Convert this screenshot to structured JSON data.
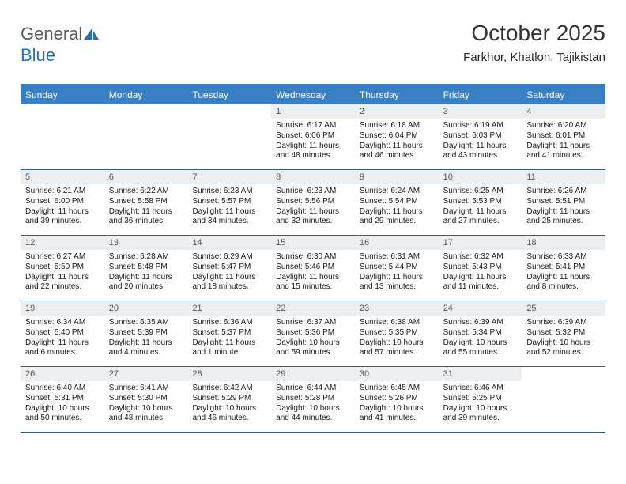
{
  "logo": {
    "part1": "General",
    "part2": "Blue"
  },
  "header": {
    "month": "October 2025",
    "location": "Farkhor, Khatlon, Tajikistan"
  },
  "colors": {
    "header_bg": "#3a7fc4",
    "header_border": "#3a7fc4",
    "row_border": "#36628f",
    "daynum_bg": "#eceff1",
    "logo_gray": "#5a5a5a",
    "logo_blue": "#2a6fb5"
  },
  "day_names": [
    "Sunday",
    "Monday",
    "Tuesday",
    "Wednesday",
    "Thursday",
    "Friday",
    "Saturday"
  ],
  "weeks": [
    [
      null,
      null,
      null,
      {
        "n": "1",
        "sr": "Sunrise: 6:17 AM",
        "ss": "Sunset: 6:06 PM",
        "dl": "Daylight: 11 hours and 48 minutes."
      },
      {
        "n": "2",
        "sr": "Sunrise: 6:18 AM",
        "ss": "Sunset: 6:04 PM",
        "dl": "Daylight: 11 hours and 46 minutes."
      },
      {
        "n": "3",
        "sr": "Sunrise: 6:19 AM",
        "ss": "Sunset: 6:03 PM",
        "dl": "Daylight: 11 hours and 43 minutes."
      },
      {
        "n": "4",
        "sr": "Sunrise: 6:20 AM",
        "ss": "Sunset: 6:01 PM",
        "dl": "Daylight: 11 hours and 41 minutes."
      }
    ],
    [
      {
        "n": "5",
        "sr": "Sunrise: 6:21 AM",
        "ss": "Sunset: 6:00 PM",
        "dl": "Daylight: 11 hours and 39 minutes."
      },
      {
        "n": "6",
        "sr": "Sunrise: 6:22 AM",
        "ss": "Sunset: 5:58 PM",
        "dl": "Daylight: 11 hours and 36 minutes."
      },
      {
        "n": "7",
        "sr": "Sunrise: 6:23 AM",
        "ss": "Sunset: 5:57 PM",
        "dl": "Daylight: 11 hours and 34 minutes."
      },
      {
        "n": "8",
        "sr": "Sunrise: 6:23 AM",
        "ss": "Sunset: 5:56 PM",
        "dl": "Daylight: 11 hours and 32 minutes."
      },
      {
        "n": "9",
        "sr": "Sunrise: 6:24 AM",
        "ss": "Sunset: 5:54 PM",
        "dl": "Daylight: 11 hours and 29 minutes."
      },
      {
        "n": "10",
        "sr": "Sunrise: 6:25 AM",
        "ss": "Sunset: 5:53 PM",
        "dl": "Daylight: 11 hours and 27 minutes."
      },
      {
        "n": "11",
        "sr": "Sunrise: 6:26 AM",
        "ss": "Sunset: 5:51 PM",
        "dl": "Daylight: 11 hours and 25 minutes."
      }
    ],
    [
      {
        "n": "12",
        "sr": "Sunrise: 6:27 AM",
        "ss": "Sunset: 5:50 PM",
        "dl": "Daylight: 11 hours and 22 minutes."
      },
      {
        "n": "13",
        "sr": "Sunrise: 6:28 AM",
        "ss": "Sunset: 5:48 PM",
        "dl": "Daylight: 11 hours and 20 minutes."
      },
      {
        "n": "14",
        "sr": "Sunrise: 6:29 AM",
        "ss": "Sunset: 5:47 PM",
        "dl": "Daylight: 11 hours and 18 minutes."
      },
      {
        "n": "15",
        "sr": "Sunrise: 6:30 AM",
        "ss": "Sunset: 5:46 PM",
        "dl": "Daylight: 11 hours and 15 minutes."
      },
      {
        "n": "16",
        "sr": "Sunrise: 6:31 AM",
        "ss": "Sunset: 5:44 PM",
        "dl": "Daylight: 11 hours and 13 minutes."
      },
      {
        "n": "17",
        "sr": "Sunrise: 6:32 AM",
        "ss": "Sunset: 5:43 PM",
        "dl": "Daylight: 11 hours and 11 minutes."
      },
      {
        "n": "18",
        "sr": "Sunrise: 6:33 AM",
        "ss": "Sunset: 5:41 PM",
        "dl": "Daylight: 11 hours and 8 minutes."
      }
    ],
    [
      {
        "n": "19",
        "sr": "Sunrise: 6:34 AM",
        "ss": "Sunset: 5:40 PM",
        "dl": "Daylight: 11 hours and 6 minutes."
      },
      {
        "n": "20",
        "sr": "Sunrise: 6:35 AM",
        "ss": "Sunset: 5:39 PM",
        "dl": "Daylight: 11 hours and 4 minutes."
      },
      {
        "n": "21",
        "sr": "Sunrise: 6:36 AM",
        "ss": "Sunset: 5:37 PM",
        "dl": "Daylight: 11 hours and 1 minute."
      },
      {
        "n": "22",
        "sr": "Sunrise: 6:37 AM",
        "ss": "Sunset: 5:36 PM",
        "dl": "Daylight: 10 hours and 59 minutes."
      },
      {
        "n": "23",
        "sr": "Sunrise: 6:38 AM",
        "ss": "Sunset: 5:35 PM",
        "dl": "Daylight: 10 hours and 57 minutes."
      },
      {
        "n": "24",
        "sr": "Sunrise: 6:39 AM",
        "ss": "Sunset: 5:34 PM",
        "dl": "Daylight: 10 hours and 55 minutes."
      },
      {
        "n": "25",
        "sr": "Sunrise: 6:39 AM",
        "ss": "Sunset: 5:32 PM",
        "dl": "Daylight: 10 hours and 52 minutes."
      }
    ],
    [
      {
        "n": "26",
        "sr": "Sunrise: 6:40 AM",
        "ss": "Sunset: 5:31 PM",
        "dl": "Daylight: 10 hours and 50 minutes."
      },
      {
        "n": "27",
        "sr": "Sunrise: 6:41 AM",
        "ss": "Sunset: 5:30 PM",
        "dl": "Daylight: 10 hours and 48 minutes."
      },
      {
        "n": "28",
        "sr": "Sunrise: 6:42 AM",
        "ss": "Sunset: 5:29 PM",
        "dl": "Daylight: 10 hours and 46 minutes."
      },
      {
        "n": "29",
        "sr": "Sunrise: 6:44 AM",
        "ss": "Sunset: 5:28 PM",
        "dl": "Daylight: 10 hours and 44 minutes."
      },
      {
        "n": "30",
        "sr": "Sunrise: 6:45 AM",
        "ss": "Sunset: 5:26 PM",
        "dl": "Daylight: 10 hours and 41 minutes."
      },
      {
        "n": "31",
        "sr": "Sunrise: 6:46 AM",
        "ss": "Sunset: 5:25 PM",
        "dl": "Daylight: 10 hours and 39 minutes."
      },
      null
    ]
  ]
}
